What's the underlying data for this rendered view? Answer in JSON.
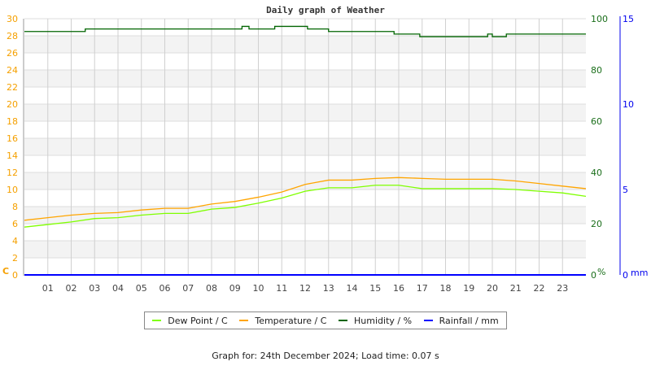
{
  "chart_data": {
    "type": "line",
    "title": "Daily graph of Weather",
    "x_tick_labels": [
      "01",
      "02",
      "03",
      "04",
      "05",
      "06",
      "07",
      "08",
      "09",
      "10",
      "11",
      "12",
      "13",
      "14",
      "15",
      "16",
      "17",
      "18",
      "19",
      "20",
      "21",
      "22",
      "23"
    ],
    "xlim": [
      0,
      24
    ],
    "grid": true,
    "legend_position": "bottom",
    "axes": {
      "left": {
        "unit": "C",
        "range": [
          0,
          30
        ],
        "ticks": [
          0,
          2,
          4,
          6,
          8,
          10,
          12,
          14,
          16,
          18,
          20,
          22,
          24,
          26,
          28,
          30
        ],
        "color": "#f5a000"
      },
      "right_humidity": {
        "unit": "%",
        "range": [
          0,
          100
        ],
        "ticks": [
          0,
          20,
          40,
          60,
          80,
          100
        ],
        "color": "#1a6e1a"
      },
      "right_rain": {
        "unit": "mm",
        "range": [
          0,
          15
        ],
        "ticks": [
          0,
          5,
          10,
          15
        ],
        "color": "#0000ee"
      }
    },
    "series": [
      {
        "name": "Dew Point / C",
        "axis": "left",
        "color": "#7fff00",
        "x": [
          0,
          1,
          2,
          3,
          4,
          5,
          6,
          7,
          8,
          9,
          10,
          11,
          12,
          13,
          14,
          15,
          16,
          17,
          18,
          19,
          20,
          21,
          22,
          23,
          24
        ],
        "values": [
          5.6,
          5.9,
          6.2,
          6.6,
          6.7,
          7.0,
          7.2,
          7.2,
          7.7,
          7.9,
          8.4,
          9.0,
          9.8,
          10.2,
          10.2,
          10.5,
          10.5,
          10.1,
          10.1,
          10.1,
          10.1,
          10.0,
          9.8,
          9.6,
          9.2
        ]
      },
      {
        "name": "Temperature / C",
        "axis": "left",
        "color": "#ffa500",
        "x": [
          0,
          1,
          2,
          3,
          4,
          5,
          6,
          7,
          8,
          9,
          10,
          11,
          12,
          13,
          14,
          15,
          16,
          17,
          18,
          19,
          20,
          21,
          22,
          23,
          24
        ],
        "values": [
          6.4,
          6.7,
          7.0,
          7.2,
          7.3,
          7.6,
          7.8,
          7.8,
          8.3,
          8.6,
          9.1,
          9.7,
          10.6,
          11.1,
          11.1,
          11.3,
          11.4,
          11.3,
          11.2,
          11.2,
          11.2,
          11.0,
          10.7,
          10.4,
          10.1
        ]
      },
      {
        "name": "Humidity / %",
        "axis": "right_humidity",
        "color": "#006400",
        "step": true,
        "x": [
          0,
          2.6,
          9.3,
          9.6,
          10.7,
          12.1,
          13.0,
          15.8,
          16.9,
          19.8,
          20.0,
          20.6,
          24
        ],
        "values": [
          95,
          96,
          97,
          96,
          97,
          96,
          95,
          94,
          93,
          94,
          93,
          94,
          94
        ]
      },
      {
        "name": "Rainfall / mm",
        "axis": "right_rain",
        "color": "#0000ff",
        "x": [
          0,
          24
        ],
        "values": [
          0,
          0
        ]
      }
    ]
  },
  "footer": "Graph for: 24th December 2024; Load time: 0.07 s"
}
